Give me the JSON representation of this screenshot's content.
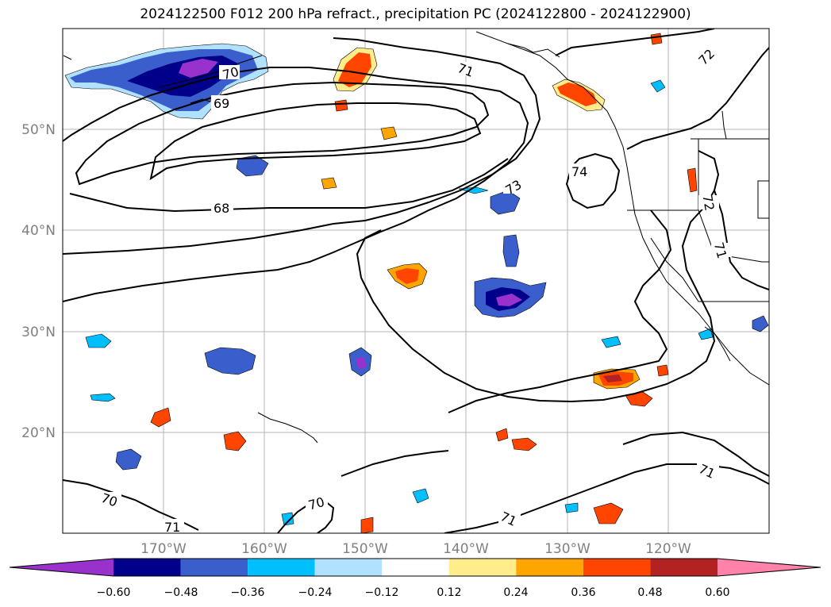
{
  "title": "2024122500 F012 200 hPa refract., precipitation PC (2024122800 - 2024122900)",
  "map": {
    "lon_range": [
      -180,
      -110
    ],
    "lat_range": [
      10,
      60
    ],
    "lat_labels": [
      "20°N",
      "30°N",
      "40°N",
      "50°N"
    ],
    "lon_labels": [
      "170°W",
      "160°W",
      "150°W",
      "140°W",
      "130°W",
      "120°W"
    ],
    "contour_labels": [
      "71",
      "72",
      "70",
      "69",
      "68",
      "73",
      "74",
      "72",
      "71",
      "70",
      "70",
      "71",
      "71",
      "71"
    ]
  },
  "colorbar": {
    "tick_labels": [
      "−0.60",
      "−0.48",
      "−0.36",
      "−0.24",
      "−0.12",
      "0.12",
      "0.24",
      "0.36",
      "0.48",
      "0.60"
    ],
    "colors": [
      "#9932cc",
      "#00008b",
      "#3a5fcd",
      "#00bfff",
      "#b0e2ff",
      "#ffffff",
      "#ffec8b",
      "#ffa500",
      "#ff4500",
      "#b22222",
      "#ff82ab"
    ]
  }
}
